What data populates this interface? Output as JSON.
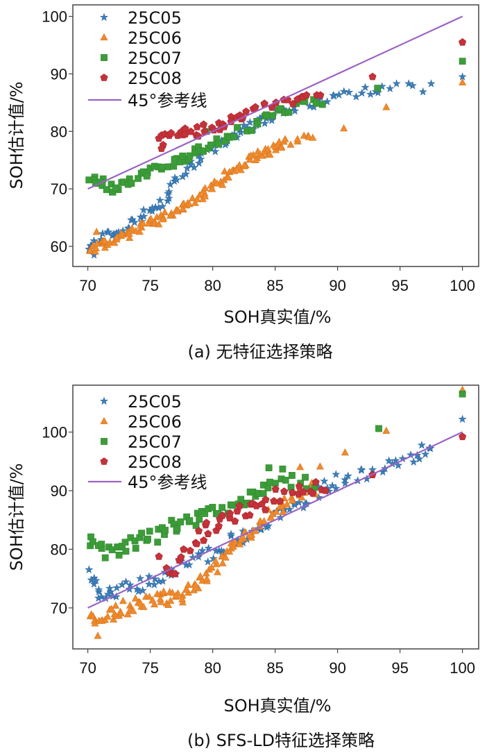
{
  "colors": {
    "25C05": "#3f7fb8",
    "25C06": "#ef8a2e",
    "25C07": "#3d9c3a",
    "25C08": "#c4323a",
    "ref": "#9a62c6",
    "axis": "#444444"
  },
  "chart_data": [
    {
      "id": "a",
      "type": "scatter",
      "caption": "(a) 无特征选择策略",
      "xlabel": "SOH真实值/%",
      "ylabel": "SOH估计值/%",
      "xlim": [
        68.8,
        101.3
      ],
      "ylim": [
        56.5,
        102
      ],
      "xticks": [
        70,
        75,
        80,
        85,
        90,
        95,
        100
      ],
      "yticks": [
        60,
        70,
        80,
        90,
        100
      ],
      "legend": [
        "25C05",
        "25C06",
        "25C07",
        "25C08",
        "45°参考线"
      ],
      "reference": {
        "label": "45°参考线",
        "from": [
          70,
          70
        ],
        "to": [
          100,
          100
        ]
      },
      "series": [
        {
          "name": "25C05",
          "marker": "star",
          "anchors": [
            [
              70.2,
              60.2
            ],
            [
              71,
              61.5
            ],
            [
              72,
              62.5
            ],
            [
              73,
              63.5
            ],
            [
              74,
              64.5
            ],
            [
              75,
              66.5
            ],
            [
              76,
              68
            ],
            [
              77,
              71
            ],
            [
              78,
              74
            ],
            [
              79,
              75.5
            ],
            [
              80,
              77
            ],
            [
              81,
              78
            ],
            [
              82,
              79.5
            ],
            [
              83,
              81
            ],
            [
              84,
              82
            ],
            [
              85,
              83
            ],
            [
              86,
              84
            ],
            [
              88,
              85
            ],
            [
              90,
              86
            ],
            [
              92,
              87
            ],
            [
              94,
              87.5
            ],
            [
              97.5,
              87.5
            ]
          ],
          "points": [
            [
              100,
              89.5
            ],
            [
              70.5,
              58.5
            ],
            [
              76.5,
              69.5
            ]
          ]
        },
        {
          "name": "25C06",
          "marker": "triangle",
          "anchors": [
            [
              70.3,
              59
            ],
            [
              71,
              60
            ],
            [
              72,
              61
            ],
            [
              73,
              62
            ],
            [
              74,
              63
            ],
            [
              75,
              64
            ],
            [
              76,
              65
            ],
            [
              77,
              66
            ],
            [
              78,
              67
            ],
            [
              79,
              68.5
            ],
            [
              80,
              70
            ],
            [
              81,
              72
            ],
            [
              82,
              73.5
            ],
            [
              83,
              75
            ],
            [
              84,
              76
            ],
            [
              85,
              77
            ],
            [
              86,
              78
            ],
            [
              88,
              79
            ]
          ],
          "points": [
            [
              90.5,
              80.5
            ],
            [
              93.9,
              84.2
            ],
            [
              100,
              88.5
            ],
            [
              70.7,
              62.5
            ]
          ]
        },
        {
          "name": "25C07",
          "marker": "square",
          "anchors": [
            [
              70.2,
              71.8
            ],
            [
              71,
              71
            ],
            [
              71.8,
              70
            ],
            [
              72.5,
              70.5
            ],
            [
              73.5,
              71.5
            ],
            [
              74.5,
              72.5
            ],
            [
              75.5,
              73.5
            ],
            [
              76.5,
              74.5
            ],
            [
              77.5,
              75
            ],
            [
              78.3,
              76.5
            ],
            [
              79,
              77
            ],
            [
              80,
              77.5
            ],
            [
              81,
              79
            ],
            [
              82.5,
              80.5
            ],
            [
              84,
              82
            ],
            [
              85.5,
              83.5
            ],
            [
              87,
              84.5
            ],
            [
              89,
              85
            ]
          ],
          "points": [
            [
              93.2,
              87.5
            ],
            [
              100,
              92.2
            ],
            [
              79.5,
              80
            ]
          ]
        },
        {
          "name": "25C08",
          "marker": "pentagon",
          "anchors": [
            [
              75.8,
              78
            ],
            [
              76.5,
              79.5
            ],
            [
              77.5,
              80
            ],
            [
              78.5,
              79.5
            ],
            [
              79.5,
              80.5
            ],
            [
              80.5,
              81
            ],
            [
              81.5,
              82
            ],
            [
              82.5,
              83
            ],
            [
              84,
              84
            ],
            [
              85.5,
              85
            ],
            [
              87,
              85.5
            ],
            [
              88.5,
              86.5
            ]
          ],
          "points": [
            [
              92.8,
              89.5
            ],
            [
              100,
              95.5
            ],
            [
              75.9,
              77
            ]
          ]
        }
      ]
    },
    {
      "id": "b",
      "type": "scatter",
      "caption": "(b) SFS-LD特征选择策略",
      "xlabel": "SOH真实值/%",
      "ylabel": "SOH估计值/%",
      "xlim": [
        68.8,
        101.3
      ],
      "ylim": [
        63,
        108
      ],
      "xticks": [
        70,
        75,
        80,
        85,
        90,
        95,
        100
      ],
      "yticks": [
        70,
        80,
        90,
        100
      ],
      "legend": [
        "25C05",
        "25C06",
        "25C07",
        "25C08",
        "45°参考线"
      ],
      "reference": {
        "label": "45°参考线",
        "from": [
          70,
          70
        ],
        "to": [
          100,
          100
        ]
      },
      "series": [
        {
          "name": "25C05",
          "marker": "star",
          "anchors": [
            [
              70.2,
              75.5
            ],
            [
              70.8,
              72.5
            ],
            [
              72,
              72.5
            ],
            [
              73.5,
              73.5
            ],
            [
              75,
              74.5
            ],
            [
              76.5,
              76
            ],
            [
              78,
              77.5
            ],
            [
              79.5,
              79
            ],
            [
              81,
              80.5
            ],
            [
              82.5,
              82.5
            ],
            [
              84,
              84
            ],
            [
              85.5,
              86
            ],
            [
              87,
              88
            ],
            [
              88.5,
              90
            ],
            [
              90,
              91.5
            ],
            [
              92,
              93
            ],
            [
              94,
              94.5
            ],
            [
              96,
              96
            ],
            [
              97.5,
              97.5
            ]
          ],
          "points": [
            [
              100,
              102.2
            ],
            [
              72,
              72
            ]
          ]
        },
        {
          "name": "25C06",
          "marker": "triangle",
          "anchors": [
            [
              70.3,
              68.5
            ],
            [
              71,
              68
            ],
            [
              72,
              69
            ],
            [
              73,
              70
            ],
            [
              74,
              70.5
            ],
            [
              75,
              71.5
            ],
            [
              76,
              72
            ],
            [
              77,
              71.5
            ],
            [
              78,
              72.5
            ],
            [
              79,
              74
            ],
            [
              80,
              76
            ],
            [
              81,
              79
            ],
            [
              82,
              81
            ],
            [
              83,
              83
            ],
            [
              84,
              85
            ],
            [
              85,
              87
            ],
            [
              86.5,
              89
            ],
            [
              88,
              90.5
            ]
          ],
          "points": [
            [
              70.8,
              65.2
            ],
            [
              87,
              94
            ],
            [
              88.6,
              94.1
            ],
            [
              90.6,
              96.5
            ],
            [
              93.9,
              100.2
            ],
            [
              100,
              107.2
            ]
          ]
        },
        {
          "name": "25C07",
          "marker": "square",
          "anchors": [
            [
              70.3,
              81.5
            ],
            [
              71,
              79.5
            ],
            [
              72,
              80
            ],
            [
              73,
              81
            ],
            [
              74,
              81.5
            ],
            [
              75,
              82
            ],
            [
              76,
              83
            ],
            [
              77,
              84
            ],
            [
              78,
              85
            ],
            [
              79,
              85.5
            ],
            [
              80,
              86.5
            ],
            [
              81,
              87
            ],
            [
              82,
              88
            ],
            [
              83,
              89
            ],
            [
              84,
              90
            ],
            [
              85,
              91
            ],
            [
              86.5,
              91.5
            ],
            [
              88,
              91.5
            ]
          ],
          "points": [
            [
              84.5,
              93.9
            ],
            [
              85.6,
              93.7
            ],
            [
              93.3,
              100.6
            ],
            [
              100,
              106.5
            ],
            [
              72.5,
              79
            ]
          ]
        },
        {
          "name": "25C08",
          "marker": "pentagon",
          "anchors": [
            [
              75.8,
              78
            ],
            [
              77,
              76.5
            ],
            [
              78,
              79
            ],
            [
              79,
              82
            ],
            [
              80,
              84
            ],
            [
              81,
              85.5
            ],
            [
              82,
              86
            ],
            [
              83,
              86.5
            ],
            [
              84,
              87.5
            ],
            [
              85,
              89
            ],
            [
              86.5,
              90
            ],
            [
              88,
              90.5
            ],
            [
              89,
              90.5
            ]
          ],
          "points": [
            [
              92.8,
              92.7
            ],
            [
              100,
              99.2
            ],
            [
              79.5,
              84.5
            ]
          ]
        }
      ]
    }
  ]
}
